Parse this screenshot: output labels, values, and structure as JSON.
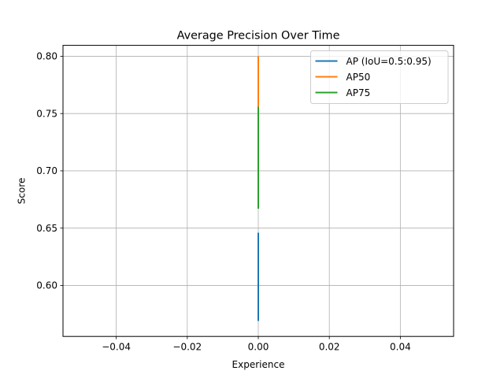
{
  "chart_data": {
    "type": "line",
    "title": "Average Precision Over Time",
    "xlabel": "Experience",
    "ylabel": "Score",
    "xlim": [
      -0.055,
      0.055
    ],
    "ylim": [
      0.5555,
      0.8095
    ],
    "x_ticks": [
      -0.04,
      -0.02,
      0.0,
      0.02,
      0.04
    ],
    "x_tick_labels": [
      "−0.04",
      "−0.02",
      "0.00",
      "0.02",
      "0.04"
    ],
    "y_ticks": [
      0.6,
      0.65,
      0.7,
      0.75,
      0.8
    ],
    "y_tick_labels": [
      "0.60",
      "0.65",
      "0.70",
      "0.75",
      "0.80"
    ],
    "grid": true,
    "legend_position": "top-right",
    "series": [
      {
        "name": "AP (IoU=0.5:0.95)",
        "color": "#1f77b4",
        "x": [
          0,
          0
        ],
        "y": [
          0.569,
          0.646
        ]
      },
      {
        "name": "AP50",
        "color": "#ff7f0e",
        "x": [
          0,
          0
        ],
        "y": [
          0.756,
          0.8
        ]
      },
      {
        "name": "AP75",
        "color": "#2ca02c",
        "x": [
          0,
          0
        ],
        "y": [
          0.667,
          0.756
        ]
      }
    ]
  }
}
